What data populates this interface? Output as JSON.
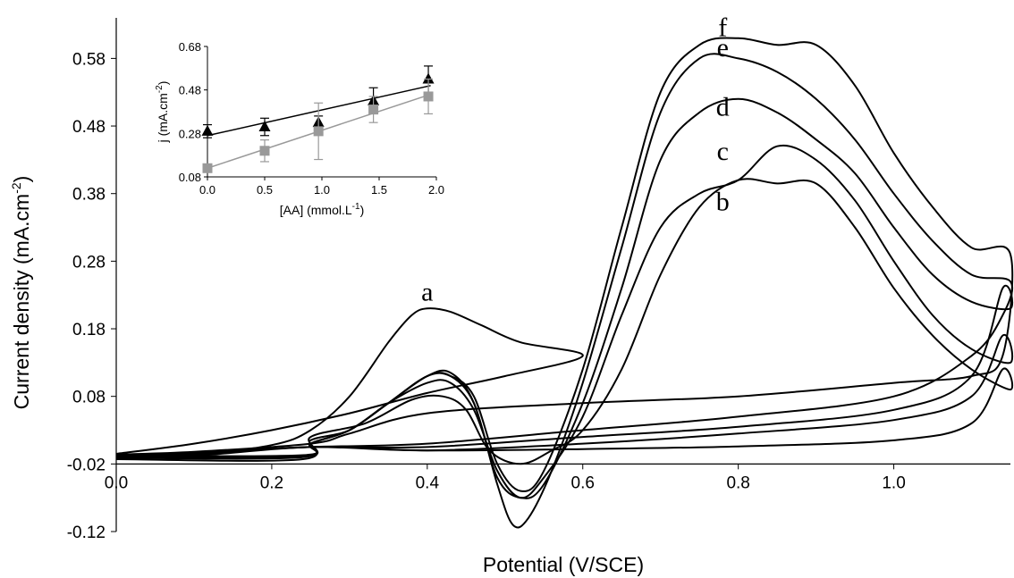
{
  "chart_data": [
    {
      "type": "line",
      "title": "",
      "xlabel": "Potential (V/SCE)",
      "ylabel": "Current density (mA.cm-2)",
      "ylabel_parts": {
        "text": "Current density (mA.cm",
        "sup": "-2",
        "close": ")"
      },
      "xlim": [
        0,
        1.15
      ],
      "ylim": [
        -0.12,
        0.64
      ],
      "xticks": [
        "0.0",
        "0.2",
        "0.4",
        "0.6",
        "0.8",
        "1.0"
      ],
      "xtick_values": [
        0.0,
        0.2,
        0.4,
        0.6,
        0.8,
        1.0
      ],
      "yticks": [
        "-0.12",
        "-0.02",
        "0.08",
        "0.18",
        "0.28",
        "0.38",
        "0.48",
        "0.58"
      ],
      "ytick_values": [
        -0.12,
        -0.02,
        0.08,
        0.18,
        0.28,
        0.38,
        0.48,
        0.58
      ],
      "grid": false,
      "series": [
        {
          "name": "a",
          "forward": [
            [
              0.0,
              -0.01
            ],
            [
              0.1,
              -0.006
            ],
            [
              0.2,
              0.008
            ],
            [
              0.25,
              0.03
            ],
            [
              0.3,
              0.08
            ],
            [
              0.35,
              0.16
            ],
            [
              0.38,
              0.2
            ],
            [
              0.4,
              0.21
            ],
            [
              0.43,
              0.205
            ],
            [
              0.47,
              0.185
            ],
            [
              0.52,
              0.16
            ],
            [
              0.6,
              0.14
            ]
          ],
          "reverse": [
            [
              0.6,
              0.14
            ],
            [
              0.5,
              0.11
            ],
            [
              0.4,
              0.085
            ],
            [
              0.3,
              0.055
            ],
            [
              0.2,
              0.03
            ],
            [
              0.1,
              0.01
            ],
            [
              0.0,
              -0.005
            ]
          ],
          "label_at": [
            0.4,
            0.222
          ]
        },
        {
          "name": "b",
          "forward": [
            [
              0.0,
              -0.013
            ],
            [
              0.24,
              -0.013
            ],
            [
              0.25,
              0.02
            ],
            [
              0.32,
              0.04
            ],
            [
              0.38,
              0.075
            ],
            [
              0.42,
              0.08
            ],
            [
              0.45,
              0.06
            ],
            [
              0.48,
              0.0
            ],
            [
              0.52,
              -0.02
            ],
            [
              0.56,
              0.0
            ],
            [
              0.6,
              0.03
            ],
            [
              0.65,
              0.12
            ],
            [
              0.7,
              0.26
            ],
            [
              0.75,
              0.36
            ],
            [
              0.8,
              0.4
            ],
            [
              0.85,
              0.395
            ],
            [
              0.9,
              0.395
            ],
            [
              0.95,
              0.33
            ],
            [
              1.0,
              0.24
            ],
            [
              1.05,
              0.17
            ],
            [
              1.1,
              0.12
            ],
            [
              1.15,
              0.09
            ]
          ],
          "reverse": [
            [
              1.15,
              0.09
            ],
            [
              1.14,
              0.12
            ],
            [
              1.1,
              0.04
            ],
            [
              1.0,
              0.015
            ],
            [
              0.8,
              0.006
            ],
            [
              0.6,
              0.002
            ],
            [
              0.4,
              0.0
            ],
            [
              0.25,
              0.005
            ],
            [
              0.1,
              -0.008
            ],
            [
              0.0,
              -0.01
            ]
          ],
          "label_at": [
            0.78,
            0.355
          ]
        },
        {
          "name": "c",
          "forward": [
            [
              0.0,
              -0.011
            ],
            [
              0.24,
              -0.01
            ],
            [
              0.25,
              0.015
            ],
            [
              0.3,
              0.03
            ],
            [
              0.35,
              0.07
            ],
            [
              0.4,
              0.1
            ],
            [
              0.43,
              0.1
            ],
            [
              0.46,
              0.06
            ],
            [
              0.49,
              -0.03
            ],
            [
              0.52,
              -0.07
            ],
            [
              0.55,
              -0.04
            ],
            [
              0.6,
              0.05
            ],
            [
              0.65,
              0.2
            ],
            [
              0.7,
              0.33
            ],
            [
              0.75,
              0.38
            ],
            [
              0.8,
              0.4
            ],
            [
              0.85,
              0.45
            ],
            [
              0.9,
              0.43
            ],
            [
              0.95,
              0.37
            ],
            [
              1.0,
              0.28
            ],
            [
              1.05,
              0.2
            ],
            [
              1.1,
              0.15
            ],
            [
              1.15,
              0.13
            ]
          ],
          "reverse": [
            [
              1.15,
              0.13
            ],
            [
              1.14,
              0.17
            ],
            [
              1.1,
              0.08
            ],
            [
              1.0,
              0.045
            ],
            [
              0.8,
              0.025
            ],
            [
              0.6,
              0.01
            ],
            [
              0.4,
              0.0
            ],
            [
              0.25,
              0.005
            ],
            [
              0.1,
              -0.006
            ],
            [
              0.0,
              -0.009
            ]
          ],
          "label_at": [
            0.78,
            0.43
          ]
        },
        {
          "name": "d",
          "forward": [
            [
              0.0,
              -0.01
            ],
            [
              0.24,
              -0.009
            ],
            [
              0.25,
              0.01
            ],
            [
              0.3,
              0.03
            ],
            [
              0.35,
              0.07
            ],
            [
              0.4,
              0.11
            ],
            [
              0.43,
              0.11
            ],
            [
              0.46,
              0.07
            ],
            [
              0.49,
              -0.04
            ],
            [
              0.52,
              -0.07
            ],
            [
              0.55,
              -0.05
            ],
            [
              0.6,
              0.07
            ],
            [
              0.65,
              0.24
            ],
            [
              0.7,
              0.43
            ],
            [
              0.75,
              0.5
            ],
            [
              0.8,
              0.52
            ],
            [
              0.85,
              0.5
            ],
            [
              0.9,
              0.46
            ],
            [
              0.95,
              0.41
            ],
            [
              1.0,
              0.33
            ],
            [
              1.05,
              0.26
            ],
            [
              1.1,
              0.22
            ],
            [
              1.15,
              0.21
            ]
          ],
          "reverse": [
            [
              1.15,
              0.21
            ],
            [
              1.14,
              0.24
            ],
            [
              1.1,
              0.11
            ],
            [
              1.0,
              0.06
            ],
            [
              0.8,
              0.035
            ],
            [
              0.6,
              0.02
            ],
            [
              0.4,
              0.005
            ],
            [
              0.25,
              0.005
            ],
            [
              0.1,
              -0.004
            ],
            [
              0.0,
              -0.008
            ]
          ],
          "label_at": [
            0.78,
            0.495
          ]
        },
        {
          "name": "e",
          "forward": [
            [
              0.0,
              -0.009
            ],
            [
              0.24,
              -0.008
            ],
            [
              0.25,
              0.01
            ],
            [
              0.3,
              0.03
            ],
            [
              0.35,
              0.07
            ],
            [
              0.4,
              0.11
            ],
            [
              0.43,
              0.115
            ],
            [
              0.46,
              0.07
            ],
            [
              0.49,
              -0.05
            ],
            [
              0.51,
              -0.11
            ],
            [
              0.53,
              -0.1
            ],
            [
              0.56,
              -0.03
            ],
            [
              0.6,
              0.1
            ],
            [
              0.65,
              0.3
            ],
            [
              0.7,
              0.5
            ],
            [
              0.75,
              0.58
            ],
            [
              0.8,
              0.58
            ],
            [
              0.85,
              0.56
            ],
            [
              0.9,
              0.52
            ],
            [
              0.95,
              0.46
            ],
            [
              1.0,
              0.38
            ],
            [
              1.05,
              0.31
            ],
            [
              1.1,
              0.26
            ],
            [
              1.15,
              0.25
            ]
          ],
          "reverse": [
            [
              1.15,
              0.25
            ],
            [
              1.14,
              0.2
            ],
            [
              1.1,
              0.14
            ],
            [
              1.0,
              0.08
            ],
            [
              0.8,
              0.05
            ],
            [
              0.6,
              0.03
            ],
            [
              0.4,
              0.01
            ],
            [
              0.25,
              0.005
            ],
            [
              0.1,
              -0.003
            ],
            [
              0.0,
              -0.007
            ]
          ],
          "label_at": [
            0.78,
            0.583
          ]
        },
        {
          "name": "f",
          "forward": [
            [
              0.0,
              -0.008
            ],
            [
              0.24,
              -0.007
            ],
            [
              0.25,
              0.01
            ],
            [
              0.3,
              0.03
            ],
            [
              0.35,
              0.07
            ],
            [
              0.4,
              0.11
            ],
            [
              0.43,
              0.11
            ],
            [
              0.46,
              0.08
            ],
            [
              0.49,
              -0.02
            ],
            [
              0.52,
              -0.06
            ],
            [
              0.55,
              -0.03
            ],
            [
              0.6,
              0.12
            ],
            [
              0.65,
              0.33
            ],
            [
              0.7,
              0.53
            ],
            [
              0.75,
              0.6
            ],
            [
              0.8,
              0.61
            ],
            [
              0.85,
              0.6
            ],
            [
              0.9,
              0.6
            ],
            [
              0.95,
              0.54
            ],
            [
              1.0,
              0.44
            ],
            [
              1.05,
              0.36
            ],
            [
              1.1,
              0.3
            ],
            [
              1.15,
              0.29
            ]
          ],
          "reverse": [
            [
              1.15,
              0.29
            ],
            [
              1.14,
              0.14
            ],
            [
              1.1,
              0.11
            ],
            [
              1.0,
              0.1
            ],
            [
              0.8,
              0.08
            ],
            [
              0.6,
              0.07
            ],
            [
              0.4,
              0.055
            ],
            [
              0.3,
              0.025
            ],
            [
              0.25,
              0.01
            ],
            [
              0.1,
              -0.002
            ],
            [
              0.0,
              -0.006
            ]
          ],
          "label_at": [
            0.78,
            0.613
          ]
        }
      ]
    },
    {
      "type": "scatter",
      "title": "",
      "xlabel": "[AA] (mmol.L-1)",
      "xlabel_parts": {
        "text": "[AA] (mmol.L",
        "sup": "-1",
        "close": ")"
      },
      "ylabel": "j (mA.cm-2)",
      "ylabel_parts": {
        "text": "j (mA.cm",
        "sup": "-2",
        "close": ")"
      },
      "xlim": [
        0,
        2.0
      ],
      "ylim": [
        0.08,
        0.68
      ],
      "xticks": [
        "0.0",
        "0.5",
        "1.0",
        "1.5",
        "2.0"
      ],
      "xtick_values": [
        0.0,
        0.5,
        1.0,
        1.5,
        2.0
      ],
      "yticks": [
        "0.08",
        "0.28",
        "0.48",
        "0.68"
      ],
      "ytick_values": [
        0.08,
        0.28,
        0.48,
        0.68
      ],
      "series": [
        {
          "marker": "triangle",
          "color": "#000000",
          "x": [
            0.0,
            0.5,
            0.97,
            1.45,
            1.93
          ],
          "y": [
            0.29,
            0.31,
            0.33,
            0.43,
            0.53
          ],
          "err": [
            0.03,
            0.04,
            0.03,
            0.06,
            0.06
          ],
          "fit": [
            [
              0.0,
              0.27
            ],
            [
              1.95,
              0.5
            ]
          ]
        },
        {
          "marker": "square",
          "color": "#999999",
          "x": [
            0.0,
            0.5,
            0.97,
            1.45,
            1.93
          ],
          "y": [
            0.12,
            0.2,
            0.29,
            0.39,
            0.45
          ],
          "err": [
            0.01,
            0.05,
            0.13,
            0.06,
            0.08
          ],
          "fit": [
            [
              0.0,
              0.12
            ],
            [
              1.95,
              0.46
            ]
          ]
        }
      ]
    }
  ]
}
